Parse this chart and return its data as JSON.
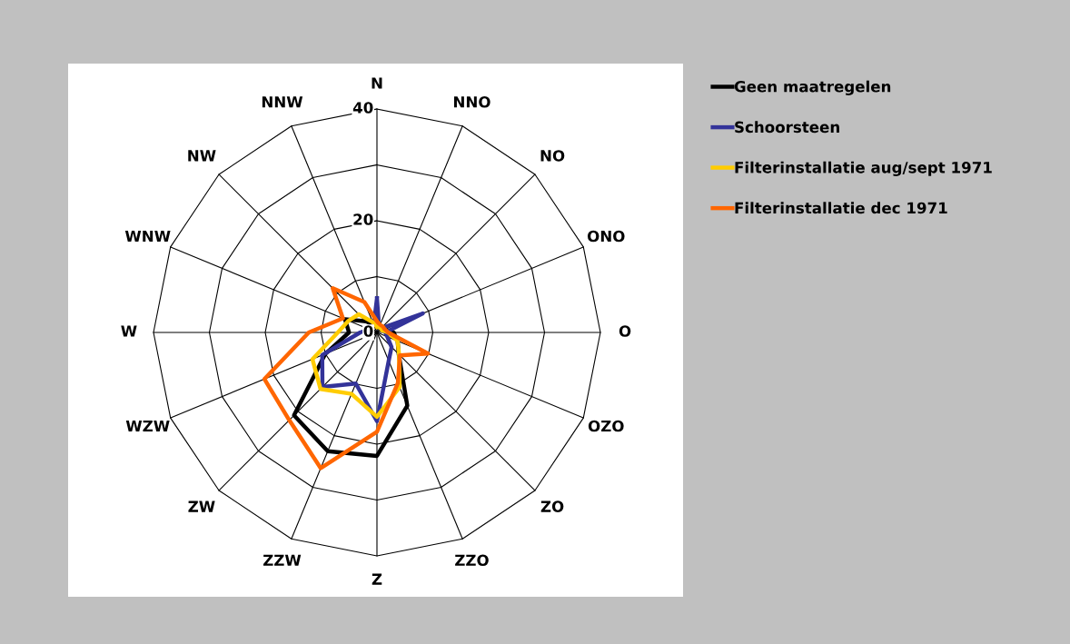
{
  "chart_data": {
    "type": "radar",
    "categories": [
      "N",
      "NNO",
      "NO",
      "ONO",
      "O",
      "OZO",
      "ZO",
      "ZZO",
      "Z",
      "ZZW",
      "ZW",
      "WZW",
      "W",
      "WNW",
      "NW",
      "NNW"
    ],
    "series": [
      {
        "name": "Geen maatregelen",
        "color": "#000000",
        "values": [
          1,
          1,
          1,
          1.5,
          3,
          4,
          5.5,
          14.2,
          22.1,
          23,
          21,
          10,
          5,
          6.2,
          2.8,
          1.5
        ]
      },
      {
        "name": "Schoorsteen",
        "color": "#333399",
        "values": [
          6.1,
          1,
          1,
          8.9,
          1.5,
          2,
          3.7,
          5.5,
          15.9,
          9.9,
          13.8,
          10.6,
          3,
          1.5,
          1.5,
          1.5
        ]
      },
      {
        "name": "Filterinstallatie aug/sept 1971",
        "color": "#ffcc00",
        "values": [
          1,
          1,
          1,
          1,
          2,
          4,
          5.6,
          10.6,
          15.1,
          11.9,
          14.3,
          12.5,
          7,
          5.5,
          4.6,
          2
        ]
      },
      {
        "name": "Filterinstallatie dec 1971",
        "color": "#ff6600",
        "values": [
          2,
          1.5,
          1.5,
          1.5,
          2,
          9.9,
          5.8,
          9.8,
          17.8,
          26.3,
          22.2,
          21.8,
          12.2,
          6.6,
          11.2,
          5.9
        ]
      }
    ],
    "ylim": [
      0,
      40
    ],
    "yticks": [
      0,
      20,
      40
    ],
    "grid": true,
    "legend": "right",
    "marker": "none",
    "line_style": "solid"
  }
}
